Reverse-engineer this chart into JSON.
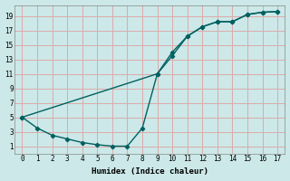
{
  "xlabel": "Humidex (Indice chaleur)",
  "bg_color": "#cce8e8",
  "grid_color": "#ddaaaa",
  "line_color": "#006060",
  "xlim": [
    -0.5,
    17.5
  ],
  "ylim": [
    0,
    20.5
  ],
  "xticks": [
    0,
    1,
    2,
    3,
    4,
    5,
    6,
    7,
    8,
    9,
    10,
    11,
    12,
    13,
    14,
    15,
    16,
    17
  ],
  "yticks": [
    1,
    3,
    5,
    7,
    9,
    11,
    13,
    15,
    17,
    19
  ],
  "lower_x": [
    0,
    1,
    2,
    3,
    4,
    5,
    6,
    7,
    8,
    9,
    10,
    11,
    12,
    13,
    14,
    15,
    16,
    17
  ],
  "lower_y": [
    5.0,
    3.5,
    2.5,
    2.0,
    1.5,
    1.2,
    1.0,
    1.0,
    3.5,
    11.0,
    14.0,
    16.2,
    17.5,
    18.2,
    18.2,
    19.2,
    19.5,
    19.6
  ],
  "upper_x": [
    0,
    9,
    10,
    11,
    12,
    13,
    14,
    15,
    16,
    17
  ],
  "upper_y": [
    5.0,
    11.0,
    13.5,
    16.2,
    17.5,
    18.2,
    18.2,
    19.2,
    19.5,
    19.6
  ]
}
